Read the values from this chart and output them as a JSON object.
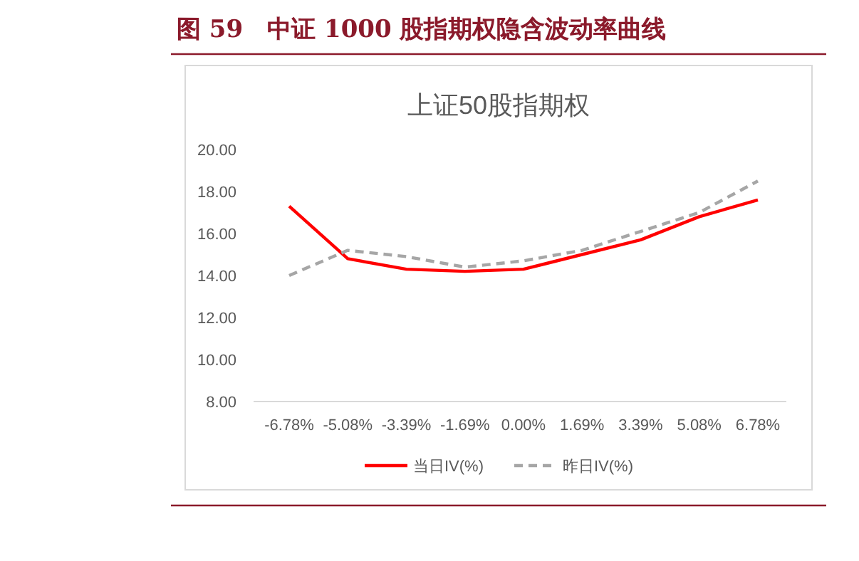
{
  "chart_data": {
    "type": "line",
    "title": "图 59　中证 1000 股指期权隐含波动率曲线",
    "subtitle": "上证50股指期权",
    "categories": [
      "-6.78%",
      "-5.08%",
      "-3.39%",
      "-1.69%",
      "0.00%",
      "1.69%",
      "3.39%",
      "5.08%",
      "6.78%"
    ],
    "series": [
      {
        "name": "当日IV(%)",
        "color": "#ff0000",
        "line_style": "solid",
        "values": [
          17.3,
          14.8,
          14.3,
          14.2,
          14.3,
          15.0,
          15.7,
          16.8,
          17.6
        ]
      },
      {
        "name": "昨日IV(%)",
        "color": "#a6a6a6",
        "line_style": "dashed",
        "values": [
          14.0,
          15.2,
          14.9,
          14.4,
          14.7,
          15.2,
          16.1,
          17.0,
          18.5
        ]
      }
    ],
    "ylim": [
      8,
      20
    ],
    "yticks": [
      {
        "value": 8,
        "label": "8.00"
      },
      {
        "value": 10,
        "label": "10.00"
      },
      {
        "value": 12,
        "label": "12.00"
      },
      {
        "value": 14,
        "label": "14.00"
      },
      {
        "value": 16,
        "label": "16.00"
      },
      {
        "value": 18,
        "label": "18.00"
      },
      {
        "value": 20,
        "label": "20.00"
      }
    ],
    "grid": false,
    "legend": "bottom",
    "marker": "none"
  }
}
